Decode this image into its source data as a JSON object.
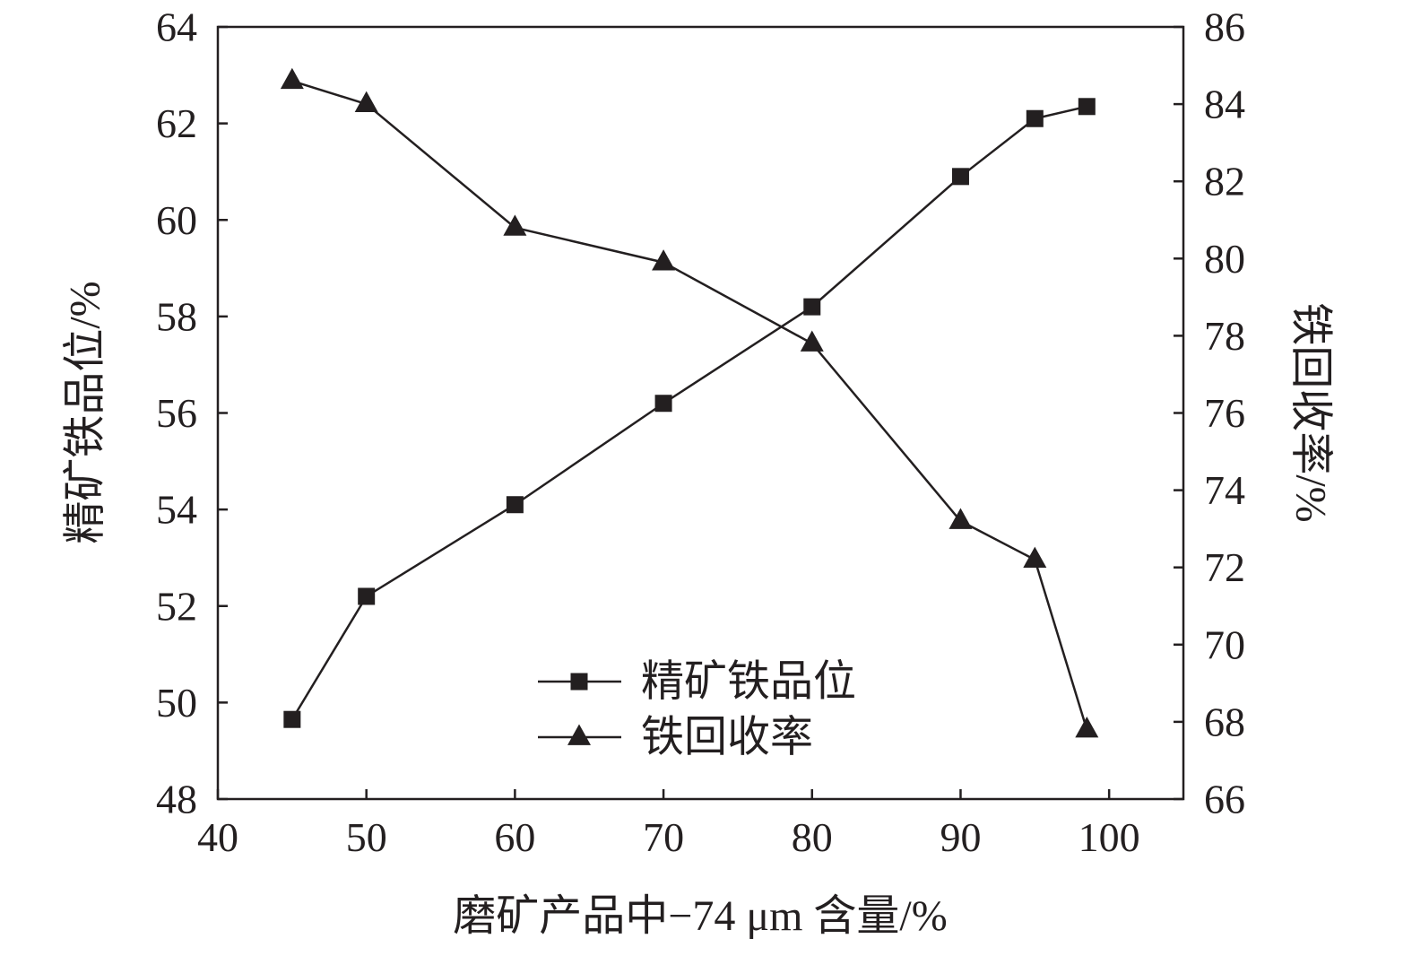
{
  "chart_data": {
    "type": "line",
    "xlabel": "磨矿产品中−74 μm 含量/%",
    "ylabel_left": "精矿铁品位/%",
    "ylabel_right": "铁回收率/%",
    "xlim": [
      40,
      105
    ],
    "ylim_left": [
      48,
      64
    ],
    "ylim_right": [
      66,
      86
    ],
    "xticks": [
      "40",
      "50",
      "60",
      "70",
      "80",
      "90",
      "100"
    ],
    "yticks_left": [
      "48",
      "50",
      "52",
      "54",
      "56",
      "58",
      "60",
      "62",
      "64"
    ],
    "yticks_right": [
      "66",
      "68",
      "70",
      "72",
      "74",
      "76",
      "78",
      "80",
      "82",
      "84",
      "86"
    ],
    "grid": false,
    "legend_position": "bottom-center",
    "series": [
      {
        "name": "精矿铁品位",
        "axis": "left",
        "marker": "square",
        "x": [
          45,
          50,
          60,
          70,
          80,
          90,
          95,
          98.5
        ],
        "y": [
          49.65,
          52.2,
          54.1,
          56.2,
          58.2,
          60.9,
          62.1,
          62.35
        ]
      },
      {
        "name": "铁回收率",
        "axis": "right",
        "marker": "triangle",
        "x": [
          45,
          50,
          60,
          70,
          80,
          90,
          95,
          98.5
        ],
        "y": [
          84.6,
          84.0,
          80.8,
          79.9,
          77.8,
          73.2,
          72.2,
          67.8
        ]
      }
    ]
  }
}
